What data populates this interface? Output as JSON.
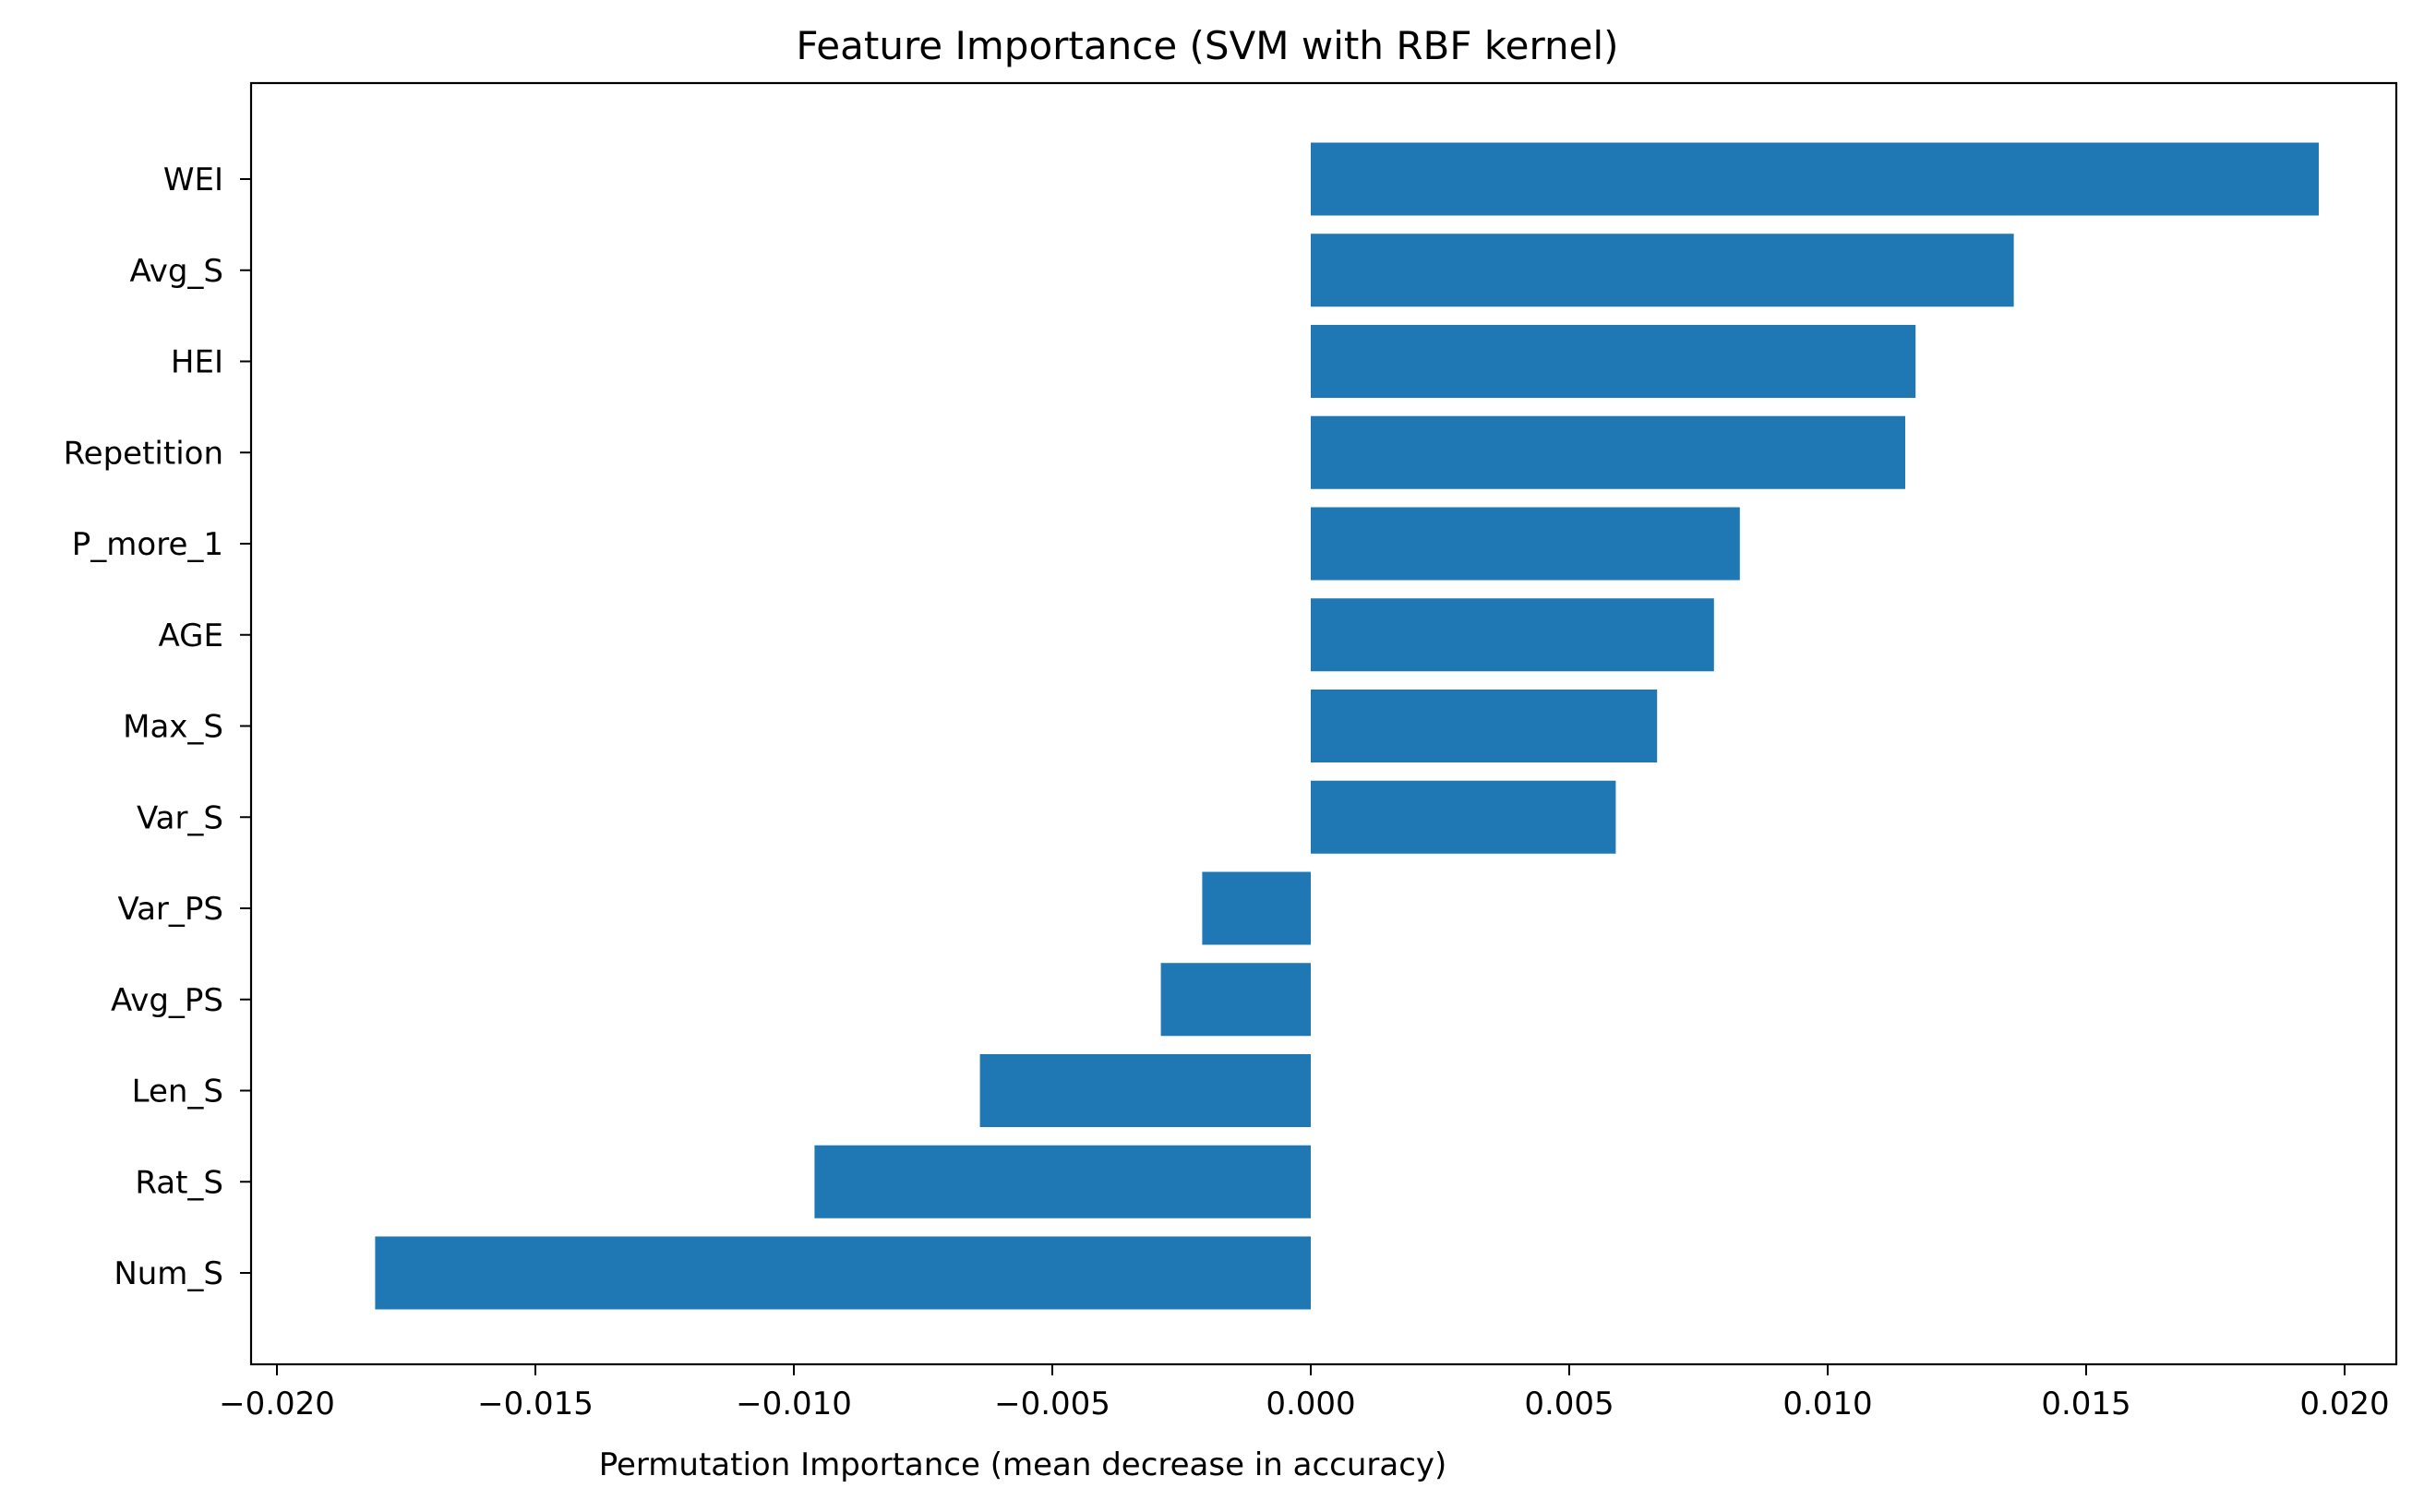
{
  "chart_data": {
    "type": "bar",
    "orientation": "horizontal",
    "title": "Feature Importance (SVM with RBF kernel)",
    "xlabel": "Permutation Importance (mean decrease in accuracy)",
    "ylabel": "",
    "xlim": [
      -0.0205,
      0.021
    ],
    "xticks": [
      -0.02,
      -0.015,
      -0.01,
      -0.005,
      0.0,
      0.005,
      0.01,
      0.015,
      0.02
    ],
    "xtick_labels": [
      "−0.020",
      "−0.015",
      "−0.010",
      "−0.005",
      "0.000",
      "0.005",
      "0.010",
      "0.015",
      "0.020"
    ],
    "categories": [
      "WEI",
      "Avg_S",
      "HEI",
      "Repetition",
      "P_more_1",
      "AGE",
      "Max_S",
      "Var_S",
      "Var_PS",
      "Avg_PS",
      "Len_S",
      "Rat_S",
      "Num_S"
    ],
    "values": [
      0.0195,
      0.0136,
      0.0117,
      0.0115,
      0.0083,
      0.0078,
      0.0067,
      0.0059,
      -0.0021,
      -0.0029,
      -0.0064,
      -0.0096,
      -0.0181
    ],
    "bar_color": "#1f77b4",
    "grid": false,
    "legend": false
  }
}
